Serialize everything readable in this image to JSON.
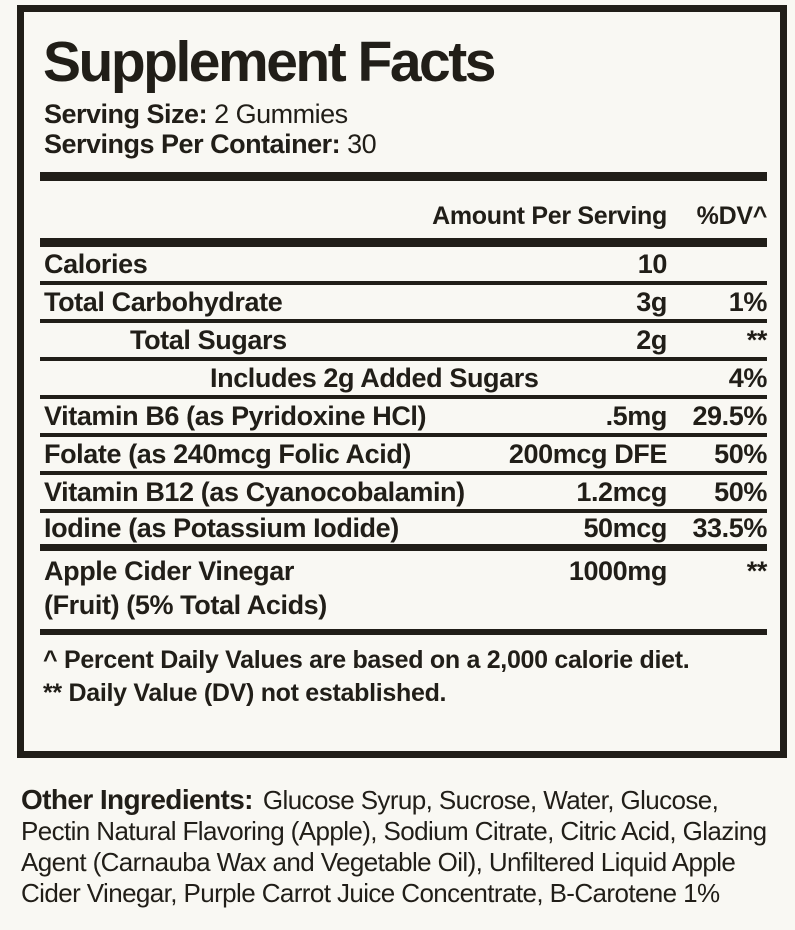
{
  "colors": {
    "ink": "#211e18",
    "background": "#f9f8f3"
  },
  "facts": {
    "title": "Supplement Facts",
    "serving_size_label": "Serving Size:",
    "serving_size_value": "2 Gummies",
    "servings_per_container_label": "Servings Per Container:",
    "servings_per_container_value": "30",
    "header": {
      "amount_col": "Amount Per Serving",
      "dv_col": "%DV^"
    },
    "rows": [
      {
        "name": "Calories",
        "amount": "10",
        "dv": ""
      },
      {
        "name": "Total Carbohydrate",
        "amount": "3g",
        "dv": "1%"
      },
      {
        "name": "Total Sugars",
        "amount": "2g",
        "dv": "**"
      },
      {
        "name": "Includes 2g Added Sugars",
        "amount": "",
        "dv": "4%"
      },
      {
        "name": "Vitamin B6 (as Pyridoxine HCl)",
        "amount": ".5mg",
        "dv": "29.5%"
      },
      {
        "name": "Folate (as 240mcg Folic Acid)",
        "amount": "200mcg DFE",
        "dv": "50%"
      },
      {
        "name": "Vitamin B12 (as Cyanocobalamin)",
        "amount": "1.2mcg",
        "dv": "50%"
      },
      {
        "name": "Iodine (as Potassium Iodide)",
        "amount": "50mcg",
        "dv": "33.5%"
      }
    ],
    "acv_row": {
      "name": "Apple Cider Vinegar",
      "name_line2": "(Fruit) (5% Total Acids)",
      "amount": "1000mg",
      "dv": "**"
    },
    "footnotes": {
      "line1": "^ Percent Daily Values are based on a 2,000 calorie diet.",
      "line2": "** Daily Value (DV) not established."
    }
  },
  "other_ingredients": {
    "label": "Other Ingredients:",
    "text": "Glucose Syrup, Sucrose, Water, Glucose, Pectin Natural Flavoring (Apple), Sodium Citrate, Citric Acid, Glazing Agent (Carnauba Wax and Vegetable Oil), Unfiltered Liquid Apple Cider Vinegar, Purple Carrot Juice Concentrate, B-Carotene 1%"
  }
}
